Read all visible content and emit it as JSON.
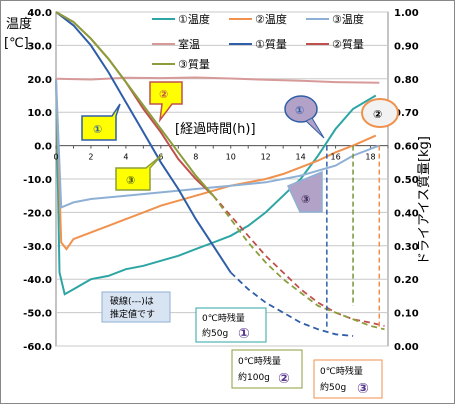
{
  "chart_data": {
    "type": "line",
    "y_left_label": [
      "温度",
      "[℃]"
    ],
    "y_right_label": "ドライアイス質量[kg]",
    "x_label": "[経過時間(h)]",
    "x_ticks": [
      "0",
      "2",
      "4",
      "6",
      "8",
      "10",
      "12",
      "14",
      "16",
      "18"
    ],
    "y_left_ticks": [
      "40.0",
      "30.0",
      "20.0",
      "10.0",
      "0.0",
      "-10.0",
      "-20.0",
      "-30.0",
      "-40.0",
      "-50.0",
      "-60.0"
    ],
    "y_right_ticks": [
      "1.00",
      "0.90",
      "0.80",
      "0.70",
      "0.60",
      "0.50",
      "0.40",
      "0.30",
      "0.20",
      "0.10",
      "0.00"
    ],
    "xlim": [
      0,
      19
    ],
    "ylim_left": [
      -60,
      40
    ],
    "ylim_right": [
      0,
      1
    ],
    "legend": [
      "①温度",
      "②温度",
      "③温度",
      "室温",
      "①質量",
      "②質量",
      "③質量"
    ],
    "colors": {
      "t1": "#2ea5a5",
      "t2": "#f0924e",
      "t3": "#8fb0d5",
      "room": "#d79a99",
      "m1": "#2f5ea8",
      "m2": "#c0504d",
      "m3": "#8c9e3b",
      "callout_yellow": "#ffff00",
      "callout_lavender": "#b3a2c7"
    },
    "series": [
      {
        "key": "t1",
        "name": "①温度",
        "axis": "left",
        "x": [
          0,
          0.2,
          0.5,
          1,
          2,
          3,
          4,
          5,
          6,
          7,
          8,
          9,
          10,
          11,
          12,
          13,
          14,
          15,
          16,
          17,
          18.3
        ],
        "y": [
          20,
          -38,
          -44.5,
          -43,
          -40,
          -39,
          -37,
          -36,
          -34.5,
          -33,
          -31,
          -29,
          -27,
          -24,
          -20,
          -15,
          -10,
          -3,
          5,
          11,
          15
        ]
      },
      {
        "key": "t2",
        "name": "②温度",
        "axis": "left",
        "x": [
          0,
          0.3,
          0.6,
          1,
          2,
          3,
          4,
          5,
          6,
          7,
          8,
          9,
          10,
          11,
          12,
          13,
          14,
          15,
          16,
          17,
          18.3
        ],
        "y": [
          20,
          -29,
          -31,
          -28,
          -26,
          -24,
          -22,
          -20,
          -18,
          -16.5,
          -15,
          -13.5,
          -12,
          -11,
          -10,
          -8.5,
          -6.5,
          -4.5,
          -2,
          0,
          3
        ]
      },
      {
        "key": "t3",
        "name": "③温度",
        "axis": "left",
        "x": [
          0,
          0.3,
          1,
          2,
          4,
          6,
          8,
          10,
          12,
          14,
          16,
          17,
          18.5
        ],
        "y": [
          20,
          -18.5,
          -17,
          -16,
          -15,
          -14,
          -13,
          -12,
          -11,
          -9,
          -6,
          -3,
          0
        ]
      },
      {
        "key": "room",
        "name": "室温",
        "axis": "left",
        "x": [
          0,
          2,
          4,
          6,
          8,
          10,
          12,
          14,
          16,
          18.5
        ],
        "y": [
          20,
          19.8,
          20.3,
          20.2,
          20.4,
          20.1,
          19.7,
          19.4,
          19,
          18.8
        ]
      },
      {
        "key": "m1",
        "name": "①質量",
        "axis": "right",
        "x": [
          0,
          1,
          2,
          3,
          4,
          5,
          6,
          7,
          8,
          9,
          10
        ],
        "y": [
          1.0,
          0.96,
          0.9,
          0.82,
          0.73,
          0.64,
          0.55,
          0.47,
          0.38,
          0.3,
          0.22
        ]
      },
      {
        "key": "m1_est",
        "name": "",
        "axis": "right",
        "dashed": true,
        "x": [
          10,
          11,
          12,
          13,
          14,
          15,
          16,
          17
        ],
        "y": [
          0.22,
          0.17,
          0.13,
          0.1,
          0.07,
          0.05,
          0.035,
          0.03
        ]
      },
      {
        "key": "m2",
        "name": "②質量",
        "axis": "right",
        "x": [
          0,
          1,
          2,
          3,
          4,
          5,
          6,
          7,
          8,
          9
        ],
        "y": [
          1.0,
          0.97,
          0.92,
          0.86,
          0.79,
          0.71,
          0.64,
          0.56,
          0.5,
          0.45
        ]
      },
      {
        "key": "m2_est",
        "name": "",
        "axis": "right",
        "dashed": true,
        "x": [
          9,
          10,
          11,
          12,
          13,
          14,
          15,
          16,
          17,
          18,
          18.8
        ],
        "y": [
          0.45,
          0.39,
          0.33,
          0.27,
          0.22,
          0.17,
          0.13,
          0.1,
          0.08,
          0.07,
          0.06
        ]
      },
      {
        "key": "m3",
        "name": "③質量",
        "axis": "right",
        "x": [
          0,
          1,
          2,
          3,
          4,
          5,
          6,
          7,
          8,
          9
        ],
        "y": [
          1.0,
          0.97,
          0.92,
          0.86,
          0.79,
          0.72,
          0.65,
          0.58,
          0.51,
          0.45
        ]
      },
      {
        "key": "m3_est",
        "name": "",
        "axis": "right",
        "dashed": true,
        "x": [
          9,
          10,
          11,
          12,
          13,
          14,
          15,
          16,
          17,
          18,
          18.8
        ],
        "y": [
          0.45,
          0.38,
          0.31,
          0.25,
          0.2,
          0.16,
          0.12,
          0.1,
          0.08,
          0.06,
          0.05
        ]
      }
    ],
    "reference_lines": [
      {
        "key": "ref1",
        "x": 15.5,
        "y_from": 0,
        "y_to": -55,
        "color": "#2f5ea8"
      },
      {
        "key": "ref2",
        "x": 17,
        "y_from": 0,
        "y_to": -48,
        "color": "#77933c"
      },
      {
        "key": "ref3",
        "x": 18.5,
        "y_from": 0,
        "y_to": -55,
        "color": "#f0924e"
      }
    ],
    "callouts": [
      {
        "key": "c2-top",
        "label": "②",
        "shape": "yellow-arrow"
      },
      {
        "key": "c1-left",
        "label": "①",
        "shape": "yellow-arrow"
      },
      {
        "key": "c3-left",
        "label": "③",
        "shape": "yellow-arrow"
      },
      {
        "key": "c1-right",
        "label": "①",
        "shape": "lavender-ellipse"
      },
      {
        "key": "c2-right",
        "label": "②",
        "shape": "orange-ellipse"
      },
      {
        "key": "c3-right",
        "label": "③",
        "shape": "lavender-arrow"
      }
    ],
    "note": {
      "line1": "破線(---)は",
      "line2": "推定値です"
    },
    "boxes": [
      {
        "key": "b1",
        "line1": "0℃時残量",
        "line2": "約50g",
        "num": "①"
      },
      {
        "key": "b2",
        "line1": "0℃時残量",
        "line2": "約100g",
        "num": "②"
      },
      {
        "key": "b3",
        "line1": "0℃時残量",
        "line2": "約50g",
        "num": "③"
      }
    ]
  }
}
